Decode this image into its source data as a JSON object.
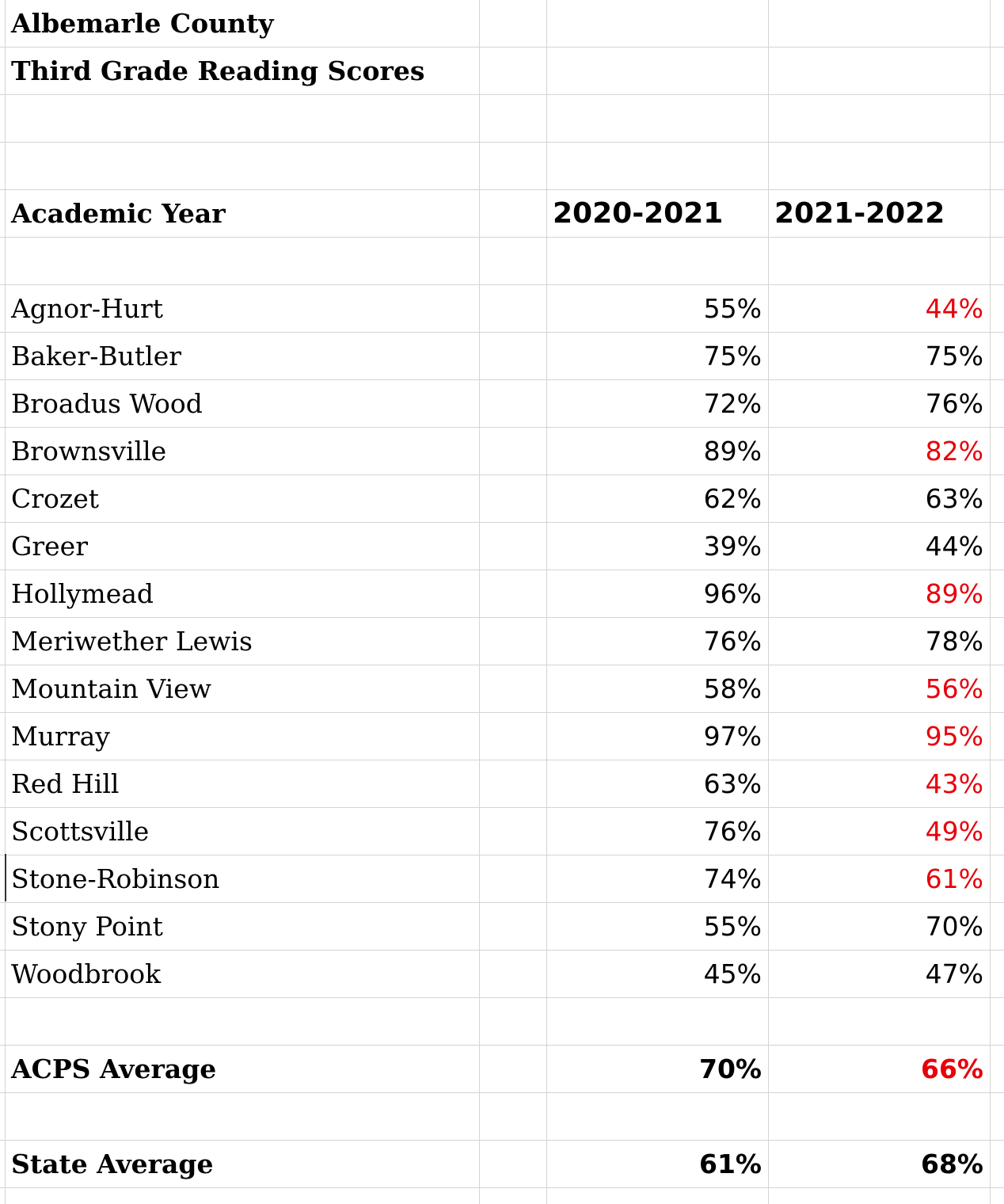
{
  "title": {
    "line1": "Albemarle County",
    "line2": "Third Grade Reading Scores"
  },
  "header": {
    "label": "Academic Year",
    "year1": "2020-2021",
    "year2": "2021-2022"
  },
  "schools": [
    {
      "name": "Agnor-Hurt",
      "y1": "55%",
      "y2": "44%",
      "decline": true
    },
    {
      "name": "Baker-Butler",
      "y1": "75%",
      "y2": "75%",
      "decline": false
    },
    {
      "name": "Broadus Wood",
      "y1": "72%",
      "y2": "76%",
      "decline": false
    },
    {
      "name": "Brownsville",
      "y1": "89%",
      "y2": "82%",
      "decline": true
    },
    {
      "name": "Crozet",
      "y1": "62%",
      "y2": "63%",
      "decline": false
    },
    {
      "name": "Greer",
      "y1": "39%",
      "y2": "44%",
      "decline": false
    },
    {
      "name": "Hollymead",
      "y1": "96%",
      "y2": "89%",
      "decline": true
    },
    {
      "name": "Meriwether Lewis",
      "y1": "76%",
      "y2": "78%",
      "decline": false
    },
    {
      "name": "Mountain View",
      "y1": "58%",
      "y2": "56%",
      "decline": true
    },
    {
      "name": "Murray",
      "y1": "97%",
      "y2": "95%",
      "decline": true
    },
    {
      "name": "Red Hill",
      "y1": "63%",
      "y2": "43%",
      "decline": true
    },
    {
      "name": "Scottsville",
      "y1": "76%",
      "y2": "49%",
      "decline": true
    },
    {
      "name": "Stone-Robinson",
      "y1": "74%",
      "y2": "61%",
      "decline": true
    },
    {
      "name": "Stony Point",
      "y1": "55%",
      "y2": "70%",
      "decline": false
    },
    {
      "name": "Woodbrook",
      "y1": "45%",
      "y2": "47%",
      "decline": false
    }
  ],
  "acps_average": {
    "label": "ACPS Average",
    "y1": "70%",
    "y2": "66%",
    "decline": true
  },
  "state_average": {
    "label": "State Average",
    "y1": "61%",
    "y2": "68%",
    "decline": false
  },
  "colors": {
    "decline": "#e8000b",
    "text": "#000000",
    "gridline": "#d4d4d4"
  }
}
